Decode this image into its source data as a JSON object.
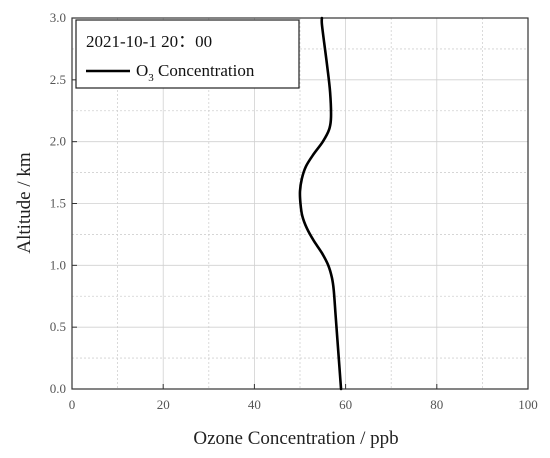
{
  "chart_data": {
    "type": "line",
    "title": "",
    "xlabel": "Ozone Concentration / ppb",
    "ylabel": "Altitude / km",
    "xlim": [
      0,
      100
    ],
    "ylim": [
      0,
      3.0
    ],
    "xticks": [
      0,
      20,
      40,
      60,
      80,
      100
    ],
    "xtick_labels": [
      "0",
      "20",
      "40",
      "60",
      "80",
      "100"
    ],
    "yticks": [
      0,
      0.5,
      1.0,
      1.5,
      2.0,
      2.5,
      3.0
    ],
    "ytick_labels": [
      "0.0",
      "0.5",
      "1.0",
      "1.5",
      "2.0",
      "2.5",
      "3.0"
    ],
    "grid": true,
    "legend": {
      "placement": "top-left",
      "header": "2021-10-1  20：00",
      "entry_main_1": "O",
      "entry_sub": "3",
      "entry_main_2": " Concentration"
    },
    "series": [
      {
        "name": "O3 Concentration",
        "color": "#000000",
        "x": [
          59.0,
          58.6,
          58.2,
          57.8,
          57.4,
          57.0,
          56.2,
          54.8,
          53.0,
          51.5,
          50.5,
          50.1,
          50.0,
          50.4,
          51.3,
          53.0,
          55.0,
          56.4,
          56.8,
          56.6,
          56.0,
          55.3,
          54.8,
          54.8
        ],
        "y": [
          0.0,
          0.2,
          0.4,
          0.6,
          0.8,
          0.9,
          1.0,
          1.1,
          1.2,
          1.3,
          1.4,
          1.5,
          1.6,
          1.7,
          1.8,
          1.9,
          2.0,
          2.1,
          2.2,
          2.4,
          2.6,
          2.8,
          2.95,
          3.0
        ]
      }
    ]
  }
}
